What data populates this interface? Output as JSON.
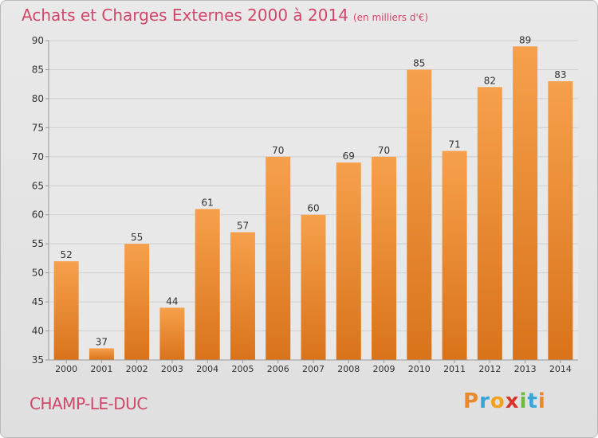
{
  "title": "Achats et Charges Externes 2000 à 2014",
  "subtitle": "(en milliers d'€)",
  "commune": "CHAMP-LE-DUC",
  "logo": {
    "text": "Proxiti",
    "letters": [
      "P",
      "r",
      "o",
      "x",
      "i",
      "t",
      "i"
    ],
    "colors": [
      "#e8892e",
      "#3aa3d8",
      "#f2a21e",
      "#d8342a",
      "#6dbb3c",
      "#3aa3d8",
      "#e8892e"
    ]
  },
  "colors": {
    "title": "#d1476a",
    "bar": "#f0882c",
    "axis_text": "#333333"
  },
  "chart_data": {
    "type": "bar",
    "categories": [
      "2000",
      "2001",
      "2002",
      "2003",
      "2004",
      "2005",
      "2006",
      "2007",
      "2008",
      "2009",
      "2010",
      "2011",
      "2012",
      "2013",
      "2014"
    ],
    "values": [
      52,
      37,
      55,
      44,
      61,
      57,
      70,
      60,
      69,
      70,
      85,
      71,
      82,
      89,
      83
    ],
    "title": "Achats et Charges Externes 2000 à 2014",
    "subtitle": "(en milliers d'€)",
    "ylim": [
      35,
      90
    ],
    "yticks": [
      35,
      40,
      45,
      50,
      55,
      60,
      65,
      70,
      75,
      80,
      85,
      90
    ],
    "grid": true,
    "data_labels": true
  }
}
